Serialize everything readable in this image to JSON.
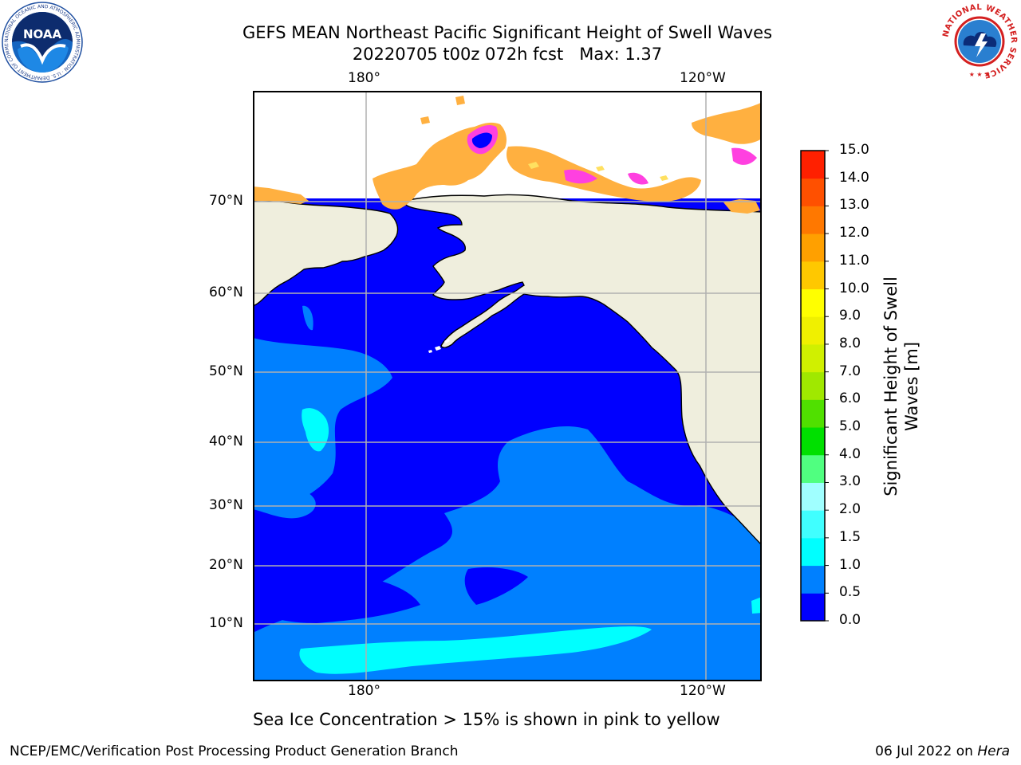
{
  "title": {
    "line1": "GEFS MEAN Northeast Pacific Significant Height of Swell Waves",
    "line2": "20220705 t00z 072h fcst   Max: 1.37"
  },
  "map": {
    "projection": "Mercator",
    "lon_ticks": [
      "180°",
      "120°W"
    ],
    "lat_ticks": [
      "70°N",
      "60°N",
      "50°N",
      "40°N",
      "30°N",
      "20°N",
      "10°N"
    ],
    "grid": true
  },
  "colorbar": {
    "label_line1": "Significant Height of Swell",
    "label_line2": "Waves [m]",
    "ticks": [
      "0.0",
      "0.5",
      "1.0",
      "1.5",
      "2.0",
      "3.0",
      "4.0",
      "5.0",
      "6.0",
      "7.0",
      "8.0",
      "9.0",
      "10.0",
      "11.0",
      "12.0",
      "13.0",
      "14.0",
      "15.0"
    ],
    "colors": [
      "#0000ff",
      "#0080ff",
      "#00ffff",
      "#40ffff",
      "#a0ffff",
      "#50ff80",
      "#00e000",
      "#50e000",
      "#a0e800",
      "#d0f000",
      "#f0f000",
      "#ffff00",
      "#ffc800",
      "#ffa000",
      "#ff7800",
      "#ff5000",
      "#ff2000"
    ]
  },
  "caption": "Sea Ice Concentration > 15% is shown in pink to yellow",
  "footer": {
    "left": "NCEP/EMC/Verification Post Processing Product Generation Branch",
    "right_date": "06 Jul 2022 on ",
    "right_host": "Hera"
  },
  "logos": {
    "noaa_text": "NOAA",
    "noaa_ring": "NATIONAL OCEANIC AND ATMOSPHERIC ADMINISTRATION · U.S. DEPARTMENT OF COMMERCE",
    "nws_ring": "NATIONAL WEATHER SERVICE"
  },
  "palette": {
    "ocean_dark": "#0000ff",
    "ocean_mid": "#0080ff",
    "ocean_cyan": "#00ffff",
    "land": "#efeedd",
    "ice_orange": "#ffb040",
    "ice_pink": "#ff40e0",
    "ice_yellow": "#ffe060"
  }
}
